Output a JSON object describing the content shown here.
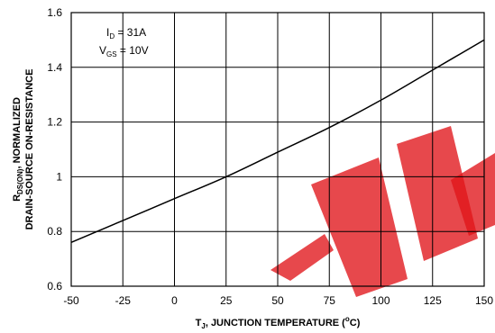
{
  "chart_data": {
    "type": "line",
    "x_ticks": [
      "-50",
      "-25",
      "0",
      "25",
      "50",
      "75",
      "100",
      "125",
      "150"
    ],
    "y_ticks": [
      "0.6",
      "0.8",
      "1",
      "1.2",
      "1.4",
      "1.6"
    ],
    "xlim": [
      -50,
      150
    ],
    "ylim": [
      0.6,
      1.6
    ],
    "grid": true,
    "xlabel": {
      "t": "T",
      "t_sub": "J",
      "text1": ", JUNCTION TEMPERATURE (",
      "deg_sup": "o",
      "text2": "C)"
    },
    "ylabel": {
      "line1_r": "R",
      "line1_sub": "DS(ON)",
      "line1_rest": ", NORMALIZED",
      "line2": "DRAIN-SOURCE ON-RESISTANCE"
    },
    "annotations": {
      "id_label": "I",
      "id_sub": "D",
      "id_value": " = 31A",
      "vgs_label": "V",
      "vgs_sub": "GS",
      "vgs_value": " = 10V"
    },
    "series": [
      {
        "x": [
          -50,
          -25,
          0,
          25,
          50,
          75,
          100,
          125,
          150
        ],
        "y": [
          0.76,
          0.84,
          0.92,
          1.0,
          1.09,
          1.18,
          1.28,
          1.39,
          1.5
        ]
      }
    ],
    "colors": {
      "line": "#000000",
      "watermark": "#e0141a"
    }
  }
}
